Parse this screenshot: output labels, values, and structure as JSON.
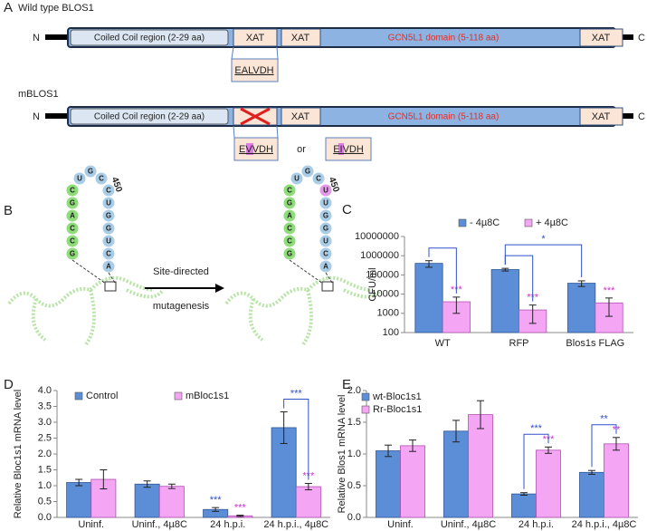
{
  "panels": {
    "A": {
      "label": "A",
      "wt_title": "Wild type BLOS1",
      "mut_title": "mBLOS1",
      "n": "N",
      "c": "C",
      "coiled": "Coiled Coil region (2-29 aa)",
      "xat": "XAT",
      "gcn": "GCN5L1 domain (5-118 aa)",
      "motif_wt": "EALVDH",
      "motif_m1": "EVVDH",
      "motif_m2": "EIVDH",
      "or": "or"
    },
    "B": {
      "label": "B",
      "arrow_text_1": "Site-directed",
      "arrow_text_2": "mutagenesis",
      "position": "450",
      "hairpin": [
        "G",
        "C",
        "C",
        "A",
        "G",
        "C",
        "U",
        "G",
        "C",
        "C",
        "U",
        "G",
        "G",
        "U",
        "C",
        "A"
      ],
      "mut_hairpin": [
        "G",
        "C",
        "C",
        "A",
        "G",
        "C",
        "U",
        "G",
        "C",
        "U",
        "U",
        "G",
        "G",
        "U",
        "C",
        "A"
      ],
      "mut_index": 9,
      "stem_color": "#8fdc7a",
      "loop_color": "#a9cde6",
      "mut_color": "#e29ae8"
    }
  },
  "chart_data": [
    {
      "type": "bar",
      "panel": "C",
      "log": true,
      "ylabel": "CFU/ml",
      "categories": [
        "WT",
        "RFP",
        "Blos1s FLAG"
      ],
      "ylim": [
        100,
        10000000
      ],
      "yticks": [
        100,
        1000,
        10000,
        100000,
        1000000,
        10000000
      ],
      "series": [
        {
          "name": "- 4µ8C",
          "color": "#5b8ed6",
          "values": [
            400000,
            190000,
            37000
          ],
          "errors": [
            150000,
            30000,
            12000
          ]
        },
        {
          "name": "+ 4µ8C",
          "color": "#f4a6f4",
          "values": [
            4000,
            1500,
            3500
          ],
          "errors": [
            3000,
            1200,
            2800
          ]
        }
      ],
      "annotations": [
        {
          "text": "***",
          "series": 1,
          "index": 0,
          "color": "#d030d0"
        },
        {
          "text": "***",
          "series": 1,
          "index": 1,
          "color": "#d030d0"
        },
        {
          "text": "***",
          "series": 1,
          "index": 2,
          "color": "#d030d0"
        }
      ],
      "brackets": [
        {
          "from": [
            0,
            0
          ],
          "to": [
            1,
            0
          ],
          "color": "#3050c8"
        },
        {
          "from": [
            0,
            1
          ],
          "to": [
            1,
            1
          ],
          "color": "#3050c8"
        },
        {
          "from": [
            0,
            1
          ],
          "to": [
            0,
            2
          ],
          "text": "*",
          "color": "#3050c8"
        }
      ]
    },
    {
      "type": "bar",
      "panel": "D",
      "log": false,
      "ylabel": "Relative Bloc1s1 mRNA level",
      "categories": [
        "Uninf.",
        "Uninf., 4µ8C",
        "24 h.p.i.",
        "24 h.p.i., 4µ8C"
      ],
      "ylim": [
        0,
        4
      ],
      "yticks": [
        {
          "value": 0,
          "label": "0.0"
        },
        0.5,
        {
          "value": 1,
          "label": "1.0"
        },
        1.5,
        {
          "value": 2,
          "label": "2.0"
        },
        2.5,
        {
          "value": 3,
          "label": "3.0"
        },
        3.5,
        {
          "value": 4,
          "label": "4.0"
        }
      ],
      "series": [
        {
          "name": "Control",
          "color": "#5b8ed6",
          "values": [
            1.1,
            1.05,
            0.25,
            2.83
          ],
          "errors": [
            0.1,
            0.1,
            0.06,
            0.5
          ]
        },
        {
          "name": "mBloc1s1",
          "color": "#f4a6f4",
          "values": [
            1.2,
            0.98,
            0.05,
            0.97
          ],
          "errors": [
            0.3,
            0.07,
            0.02,
            0.1
          ]
        }
      ],
      "annotations": [
        {
          "text": "***",
          "series": 0,
          "index": 2,
          "color": "#3050c8"
        },
        {
          "text": "***",
          "series": 1,
          "index": 2,
          "color": "#d030d0"
        },
        {
          "text": "***",
          "series": 1,
          "index": 3,
          "color": "#d030d0"
        }
      ],
      "brackets": [
        {
          "from": [
            0,
            3
          ],
          "to": [
            1,
            3
          ],
          "text": "***",
          "color": "#3050c8"
        }
      ]
    },
    {
      "type": "bar",
      "panel": "E",
      "log": false,
      "ylabel": "Relative Blos1 mRNA level",
      "categories": [
        "Uninf.",
        "Uninf., 4µ8C",
        "24 h.p.i.",
        "24 h.p.i., 4µ8C"
      ],
      "ylim": [
        0,
        2
      ],
      "yticks": [
        {
          "value": 0,
          "label": "0.0"
        },
        0.5,
        {
          "value": 1,
          "label": "1.0"
        },
        1.5,
        {
          "value": 2,
          "label": "2.0"
        }
      ],
      "series": [
        {
          "name": "wt-Bloc1s1",
          "color": "#5b8ed6",
          "values": [
            1.05,
            1.36,
            0.37,
            0.71
          ],
          "errors": [
            0.09,
            0.17,
            0.02,
            0.03
          ]
        },
        {
          "name": "Rr-Bloc1s1",
          "color": "#f4a6f4",
          "values": [
            1.13,
            1.62,
            1.06,
            1.16
          ],
          "errors": [
            0.09,
            0.22,
            0.05,
            0.1
          ]
        }
      ],
      "annotations": [
        {
          "text": "***",
          "series": 1,
          "index": 2,
          "color": "#d030d0"
        },
        {
          "text": "**",
          "series": 1,
          "index": 3,
          "color": "#d030d0"
        }
      ],
      "brackets": [
        {
          "from": [
            0,
            2
          ],
          "to": [
            1,
            2
          ],
          "text": "***",
          "color": "#3050c8"
        },
        {
          "from": [
            0,
            3
          ],
          "to": [
            1,
            3
          ],
          "text": "**",
          "color": "#3050c8"
        }
      ]
    }
  ]
}
